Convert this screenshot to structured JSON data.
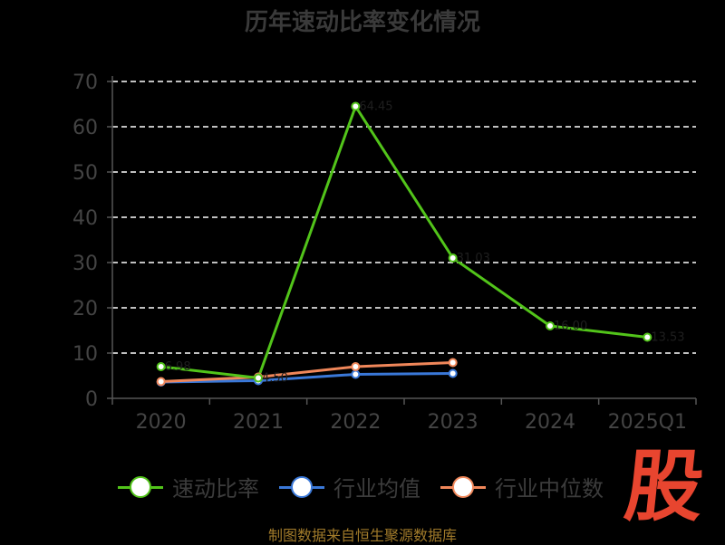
{
  "chart_data": {
    "type": "line",
    "title": "历年速动比率变化情况",
    "categories": [
      "2020",
      "2021",
      "2022",
      "2023",
      "2024",
      "2025Q1"
    ],
    "y_ticks": [
      0,
      10,
      20,
      30,
      40,
      50,
      60,
      70
    ],
    "ylim": [
      0,
      70
    ],
    "grid": "horizontal dashed",
    "legend_position": "bottom",
    "series": [
      {
        "name": "速动比率",
        "color": "#52c41a",
        "values": [
          7.0,
          4.5,
          64.5,
          31.0,
          16.0,
          13.5
        ],
        "labels": [
          "6.98",
          "4.50",
          "64.45",
          "31.03",
          "16.00",
          "13.53"
        ]
      },
      {
        "name": "行业均值",
        "color": "#3a78d8",
        "values": [
          3.6,
          3.9,
          5.3,
          5.5,
          null,
          null
        ],
        "labels": []
      },
      {
        "name": "行业中位数",
        "color": "#f0875a",
        "values": [
          3.7,
          4.7,
          7.0,
          7.9,
          null,
          null
        ],
        "labels": []
      }
    ]
  },
  "footer": {
    "source": "制图数据来自恒生聚源数据库"
  },
  "brand": {
    "logo_text": "股"
  }
}
